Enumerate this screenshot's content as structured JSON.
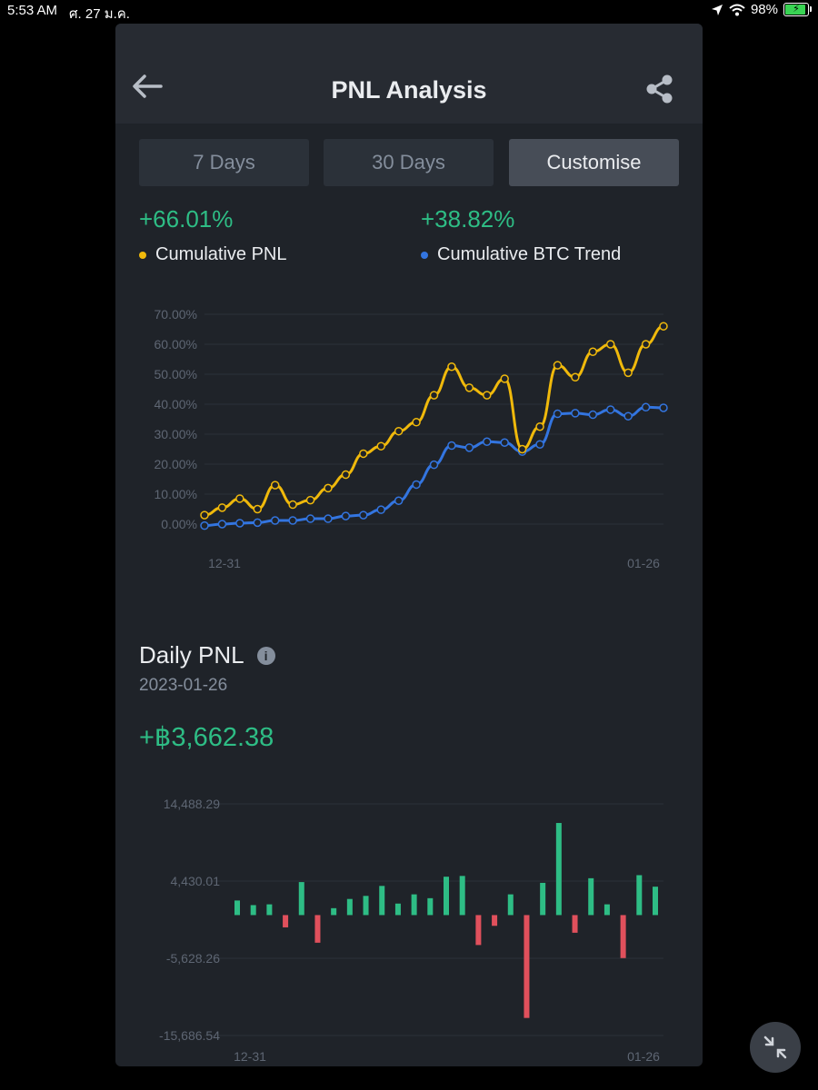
{
  "status": {
    "time": "5:53 AM",
    "date": "ศ. 27 ม.ค.",
    "battery": "98%"
  },
  "header": {
    "title": "PNL Analysis"
  },
  "tabs": [
    {
      "label": "7 Days",
      "active": false
    },
    {
      "label": "30 Days",
      "active": false
    },
    {
      "label": "Customise",
      "active": true
    }
  ],
  "summary": {
    "pnl_value": "+66.01%",
    "pnl_label": "Cumulative PNL",
    "btc_value": "+38.82%",
    "btc_label": "Cumulative BTC Trend"
  },
  "colors": {
    "pnl": "#f0b90b",
    "btc": "#3375e0",
    "positive": "#2ebd85",
    "negative": "#e0505c"
  },
  "daily": {
    "title": "Daily PNL",
    "date": "2023-01-26",
    "value": "+฿3,662.38"
  },
  "chart_data": [
    {
      "type": "line",
      "x_tick_labels": [
        "12-31",
        "01-26"
      ],
      "y_tick_labels": [
        "70.00%",
        "60.00%",
        "50.00%",
        "40.00%",
        "30.00%",
        "20.00%",
        "10.00%",
        "0.00%"
      ],
      "ylim": [
        0,
        70
      ],
      "series": [
        {
          "name": "Cumulative PNL",
          "values": [
            3,
            5.5,
            8.5,
            5,
            13,
            6.5,
            8,
            12,
            16.5,
            23.5,
            26,
            31,
            34,
            43,
            52.5,
            45.5,
            43,
            48.5,
            25,
            32.5,
            53,
            49,
            57.5,
            60,
            50.5,
            60,
            66
          ]
        },
        {
          "name": "Cumulative BTC Trend",
          "values": [
            -0.5,
            0,
            0.3,
            0.5,
            1.2,
            1.2,
            1.8,
            1.8,
            2.7,
            3,
            4.8,
            7.8,
            13.2,
            19.8,
            26.2,
            25.5,
            27.5,
            27.2,
            24.2,
            26.6,
            36.8,
            37,
            36.5,
            38.2,
            36,
            39,
            38.8
          ]
        }
      ],
      "grid": true
    },
    {
      "type": "bar",
      "x_tick_labels": [
        "12-31",
        "01-26"
      ],
      "y_tick_labels": [
        "14,488.29",
        "4,430.01",
        "-5,628.26",
        "-15,686.54"
      ],
      "ylim": [
        -15686.54,
        14488.29
      ],
      "values": [
        1900,
        1300,
        1400,
        -1600,
        4300,
        -3600,
        900,
        2100,
        2500,
        3800,
        1500,
        2700,
        2200,
        5000,
        5100,
        -3900,
        -1400,
        2700,
        -13400,
        4200,
        12000,
        -2300,
        4800,
        1400,
        -5600,
        5200,
        3700
      ],
      "grid": true
    }
  ]
}
